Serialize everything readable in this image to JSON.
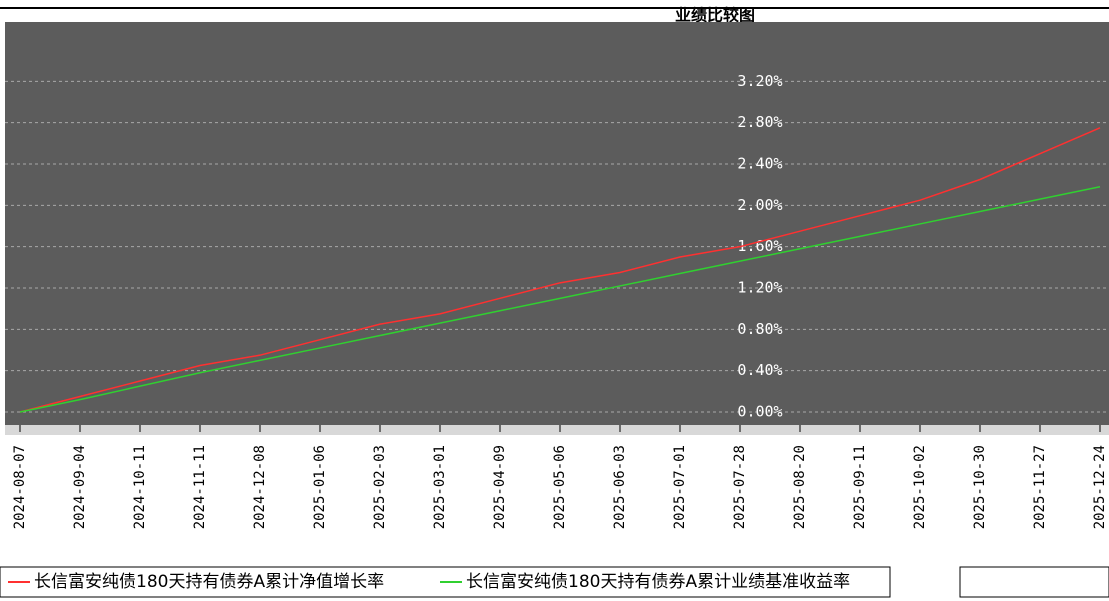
{
  "chart_data": {
    "type": "line",
    "title": "业绩比较图",
    "categories": [
      "2024-08-07",
      "2024-09-04",
      "2024-10-11",
      "2024-11-11",
      "2024-12-08",
      "2025-01-06",
      "2025-02-03",
      "2025-03-01",
      "2025-04-09",
      "2025-05-06",
      "2025-06-03",
      "2025-07-01",
      "2025-07-28",
      "2025-08-20",
      "2025-09-11",
      "2025-10-02",
      "2025-10-30",
      "2025-11-27",
      "2025-12-24"
    ],
    "series": [
      {
        "name": "长信富安纯债180天持有债券A累计净值增长率",
        "color": "#ff3030",
        "values": [
          0,
          0.15,
          0.3,
          0.45,
          0.55,
          0.7,
          0.85,
          0.95,
          1.1,
          1.25,
          1.35,
          1.5,
          1.6,
          1.75,
          1.9,
          2.05,
          2.25,
          2.5,
          2.75
        ]
      },
      {
        "name": "长信富安纯债180天持有债券A累计业绩基准收益率",
        "color": "#30d030",
        "values": [
          0,
          0.12,
          0.25,
          0.38,
          0.5,
          0.62,
          0.74,
          0.86,
          0.98,
          1.1,
          1.22,
          1.34,
          1.46,
          1.58,
          1.7,
          1.82,
          1.94,
          2.06,
          2.18
        ]
      }
    ],
    "ylim": [
      0,
      3.6
    ],
    "yticks": [
      {
        "value": 0,
        "label": "0.00%"
      },
      {
        "value": 0.4,
        "label": "0.40%"
      },
      {
        "value": 0.8,
        "label": "0.80%"
      },
      {
        "value": 1.2,
        "label": "1.20%"
      },
      {
        "value": 1.6,
        "label": "1.60%"
      },
      {
        "value": 2,
        "label": "2.00%"
      },
      {
        "value": 2.4,
        "label": "2.40%"
      },
      {
        "value": 2.8,
        "label": "2.80%"
      },
      {
        "value": 3.2,
        "label": "3.20%"
      }
    ],
    "grid": true
  }
}
